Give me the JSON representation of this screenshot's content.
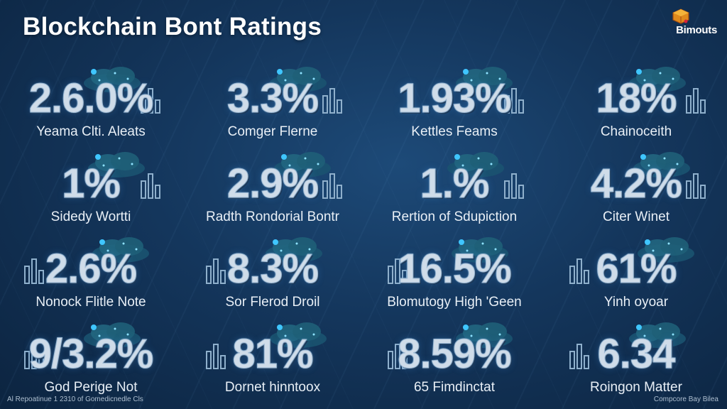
{
  "header": {
    "title": "Blockchain Bont Ratings",
    "brand": "Bimouts"
  },
  "tiles": [
    {
      "value": "2.6.0%",
      "label": "Yeama Clti. Aleats"
    },
    {
      "value": "3.3%",
      "label": "Comger Flerne"
    },
    {
      "value": "1.93%",
      "label": "Kettles Feams"
    },
    {
      "value": "18%",
      "label": "Chainoceith"
    },
    {
      "value": "1%",
      "label": "Sidedy Wortti"
    },
    {
      "value": "2.9%",
      "label": "Radth Rondorial Bontr"
    },
    {
      "value": "1.%",
      "label": "Rertion of Sdupiction"
    },
    {
      "value": "4.2%",
      "label": "Citer Winet"
    },
    {
      "value": "2.6%",
      "label": "Nonock Flitle Note"
    },
    {
      "value": "8.3%",
      "label": "Sor Flerod Droil"
    },
    {
      "value": "16.5%",
      "label": "Blomutogy High 'Geen"
    },
    {
      "value": "61%",
      "label": "Yinh oyoar"
    },
    {
      "value": "9/3.2%",
      "label": "God Perige Not"
    },
    {
      "value": "81%",
      "label": "Dornet hinntoox"
    },
    {
      "value": "8.59%",
      "label": "65 Fimdinctat"
    },
    {
      "value": "6.34",
      "label": "Roingon Matter"
    }
  ],
  "footer": {
    "left": "Al Repoatinue 1 2310 of Gomedicnedle Cls",
    "right": "Compcore Bay Bilea"
  },
  "colors": {
    "background": "#14365c",
    "value_text": "#cfdce9",
    "accent_glow": "#3fc6ff"
  }
}
